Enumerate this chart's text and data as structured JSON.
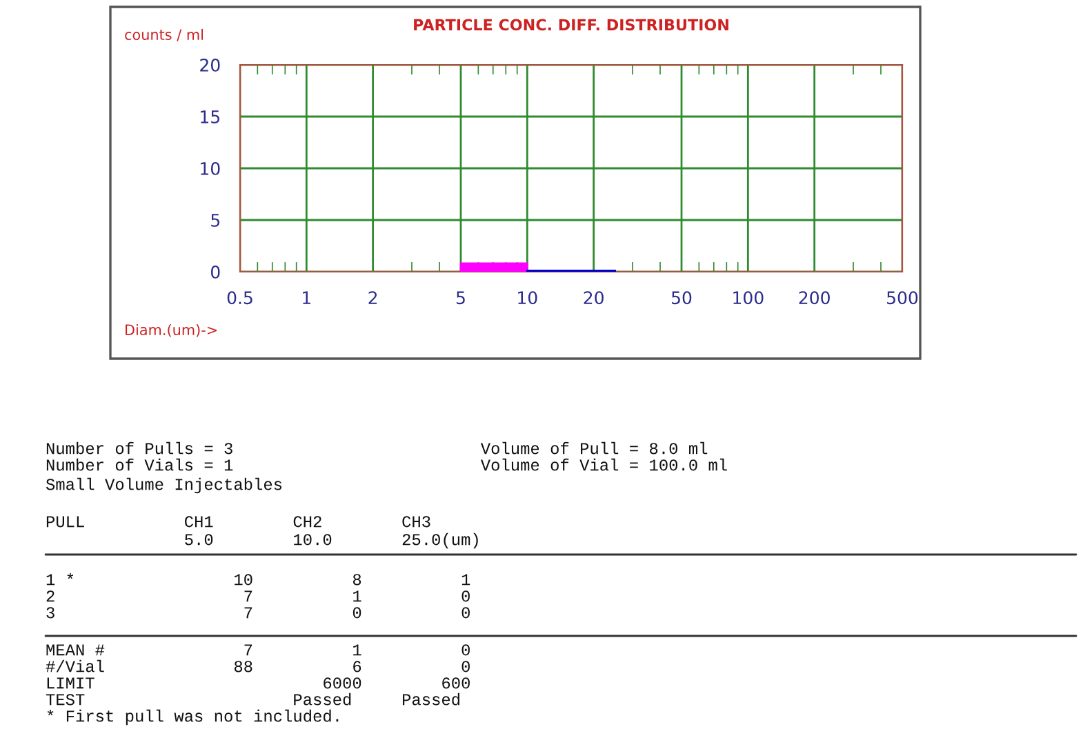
{
  "chart_data": {
    "type": "histogram",
    "title": "PARTICLE CONC. DIFF. DISTRIBUTION",
    "ylabel": "counts / ml",
    "xlabel": "Diam.(um)->",
    "bins": [
      5,
      10,
      25
    ],
    "values": [
      0.8,
      0.1
    ],
    "colors": [
      "#ff00ff",
      "#0000cc"
    ],
    "log": "x",
    "xlim": [
      0.5,
      500
    ],
    "xticks": [
      0.5,
      1,
      2,
      5,
      10,
      20,
      50,
      100,
      200,
      500
    ],
    "ylim": [
      0,
      20
    ],
    "yticks": [
      0,
      5,
      10,
      15,
      20
    ],
    "grid": true,
    "annotations": [
      "Number of Pulls = 3                         Volume of Pull = 8.0 ml",
      "Number of Vials = 1                         Volume of Vial = 100.0 ml",
      "Small Volume Injectables",
      "PULL          CH1        CH2        CH3",
      "              5.0        10.0       25.0(um)",
      "1 *                10          8          1",
      "2                   7          1          0",
      "3                   7          0          0",
      "MEAN #              7          1          0",
      "#/Vial             88          6          0",
      "LIMIT                       6000        600",
      "TEST                     Passed     Passed",
      "* First pull was not included."
    ]
  }
}
